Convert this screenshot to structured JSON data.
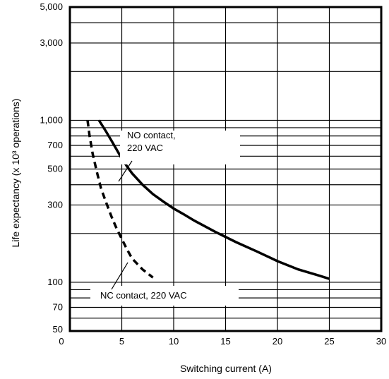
{
  "chart_data": {
    "type": "line",
    "xlabel": "Switching current (A)",
    "ylabel": "Life expectancy (x 10³ operations)",
    "x_scale": "linear",
    "y_scale": "log",
    "xlim": [
      0,
      30
    ],
    "ylim": [
      50,
      5000
    ],
    "x_ticks": [
      "0",
      "5",
      "10",
      "15",
      "20",
      "25",
      "30"
    ],
    "y_ticks": [
      "50",
      "70",
      "100",
      "300",
      "500",
      "700",
      "1,000",
      "3,000",
      "5,000"
    ],
    "grid": true,
    "series": [
      {
        "name": "NO contact, 220 VAC",
        "style": "solid",
        "x": [
          2.8,
          3.5,
          4.0,
          4.5,
          5.0,
          5.5,
          6.0,
          7.0,
          8.0,
          9.0,
          10.0,
          11.0,
          12.0,
          14.0,
          16.0,
          18.0,
          20.0,
          22.0,
          24.0,
          25.0
        ],
        "y": [
          1000,
          850,
          750,
          660,
          580,
          520,
          470,
          400,
          350,
          315,
          285,
          262,
          240,
          205,
          177,
          155,
          135,
          120,
          110,
          105
        ]
      },
      {
        "name": "NC contact, 220 VAC",
        "style": "dashed",
        "x": [
          1.7,
          1.9,
          2.2,
          2.6,
          3.0,
          3.5,
          4.0,
          4.5,
          5.0,
          5.5,
          6.0,
          7.0,
          8.0
        ],
        "y": [
          1000,
          800,
          620,
          480,
          380,
          310,
          255,
          215,
          185,
          160,
          140,
          120,
          107
        ]
      }
    ],
    "annotations": [
      {
        "line1": "NO contact,",
        "line2": "220 VAC"
      },
      {
        "line1": "NC contact, 220 VAC",
        "line2": ""
      }
    ]
  }
}
